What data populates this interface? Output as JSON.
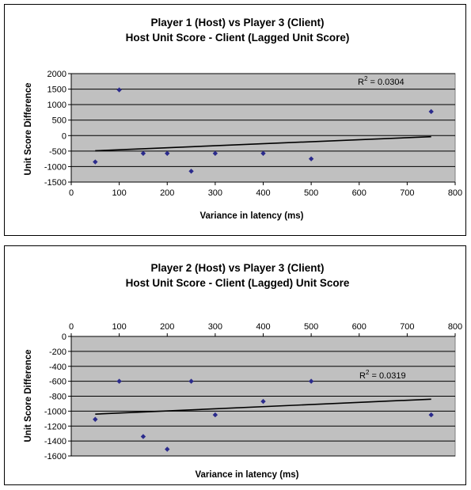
{
  "chart_data": [
    {
      "type": "scatter",
      "title": "Player 1 (Host) vs Player 3 (Client)",
      "subtitle": "Host Unit Score - Client (Lagged Unit Score)",
      "xlabel": "Variance in latency (ms)",
      "ylabel": "Unit Score Difference",
      "xlim": [
        0,
        800
      ],
      "ylim": [
        -1500,
        2000
      ],
      "x_ticks": [
        0,
        100,
        200,
        300,
        400,
        500,
        600,
        700,
        800
      ],
      "y_ticks": [
        2000,
        1500,
        1000,
        500,
        0,
        -500,
        -1000,
        -1500
      ],
      "x_axis_position": "bottom",
      "grid": true,
      "points": [
        {
          "x": 50,
          "y": -850
        },
        {
          "x": 100,
          "y": 1475
        },
        {
          "x": 150,
          "y": -575
        },
        {
          "x": 200,
          "y": -575
        },
        {
          "x": 250,
          "y": -1150
        },
        {
          "x": 300,
          "y": -575
        },
        {
          "x": 400,
          "y": -575
        },
        {
          "x": 500,
          "y": -750
        },
        {
          "x": 750,
          "y": 775
        }
      ],
      "trendline": {
        "x": [
          50,
          750
        ],
        "y": [
          -490,
          -35
        ]
      },
      "r2_label": {
        "prefix": "R",
        "sup": "2",
        "suffix": " = 0.0304"
      },
      "colors": {
        "plot_bg": "#c0c0c0",
        "marker": "#2b2b8c",
        "trend": "#000000"
      }
    },
    {
      "type": "scatter",
      "title": "Player 2 (Host) vs Player 3 (Client)",
      "subtitle": "Host Unit Score - Client (Lagged) Unit Score",
      "xlabel": "Variance in latency (ms)",
      "ylabel": "Unit Score Difference",
      "xlim": [
        0,
        800
      ],
      "ylim": [
        -1600,
        0
      ],
      "x_ticks": [
        0,
        100,
        200,
        300,
        400,
        500,
        600,
        700,
        800
      ],
      "y_ticks": [
        0,
        -200,
        -400,
        -600,
        -800,
        -1000,
        -1200,
        -1400,
        -1600
      ],
      "x_axis_position": "top",
      "grid": true,
      "points": [
        {
          "x": 50,
          "y": -1110
        },
        {
          "x": 100,
          "y": -600
        },
        {
          "x": 150,
          "y": -1340
        },
        {
          "x": 200,
          "y": -1510
        },
        {
          "x": 250,
          "y": -600
        },
        {
          "x": 300,
          "y": -1050
        },
        {
          "x": 400,
          "y": -870
        },
        {
          "x": 500,
          "y": -600
        },
        {
          "x": 750,
          "y": -1050
        }
      ],
      "trendline": {
        "x": [
          50,
          750
        ],
        "y": [
          -1040,
          -840
        ]
      },
      "r2_label": {
        "prefix": "R",
        "sup": "2",
        "suffix": " = 0.0319"
      },
      "colors": {
        "plot_bg": "#c0c0c0",
        "marker": "#2b2b8c",
        "trend": "#000000"
      }
    }
  ]
}
